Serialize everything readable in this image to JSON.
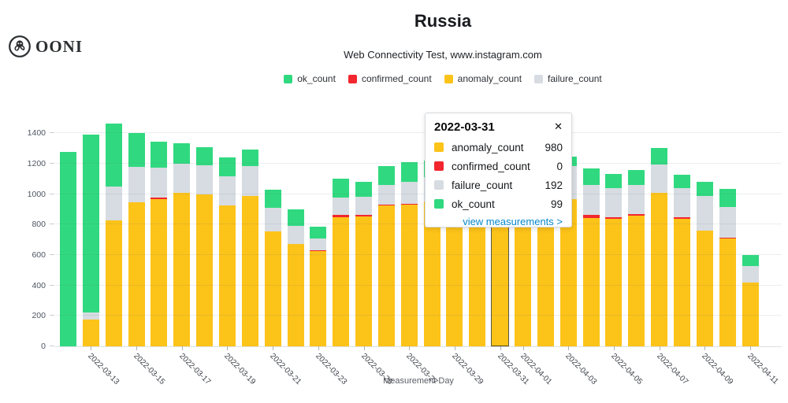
{
  "logo": {
    "text": "OONI"
  },
  "header": {
    "title": "Russia",
    "subtitle": "Web Connectivity Test, www.instagram.com"
  },
  "legend": [
    {
      "label": "ok_count",
      "color": "#30d97f"
    },
    {
      "label": "confirmed_count",
      "color": "#f2262e"
    },
    {
      "label": "anomaly_count",
      "color": "#fcc319"
    },
    {
      "label": "failure_count",
      "color": "#d7dce2"
    }
  ],
  "colors": {
    "ok": "#30d97f",
    "confirmed": "#f2262e",
    "anomaly": "#fcc319",
    "failure": "#d7dce2",
    "link_blue": "#0588cb",
    "grid": "rgba(90,104,128,0.12)"
  },
  "chart_data": {
    "type": "bar",
    "stacked": true,
    "title": "Russia",
    "xlabel": "Measurement Day",
    "ylabel": "",
    "ylim": [
      0,
      1500
    ],
    "yticks": [
      0,
      200,
      400,
      600,
      800,
      1000,
      1200,
      1400
    ],
    "grid": true,
    "legend_position": "top",
    "x": [
      "2022-03-12",
      "2022-03-13",
      "2022-03-14",
      "2022-03-15",
      "2022-03-16",
      "2022-03-17",
      "2022-03-18",
      "2022-03-19",
      "2022-03-20",
      "2022-03-21",
      "2022-03-22",
      "2022-03-23",
      "2022-03-24",
      "2022-03-25",
      "2022-03-26",
      "2022-03-27",
      "2022-03-28",
      "2022-03-29",
      "2022-03-30",
      "2022-03-31",
      "2022-04-01",
      "2022-04-02",
      "2022-04-03",
      "2022-04-04",
      "2022-04-05",
      "2022-04-06",
      "2022-04-07",
      "2022-04-08",
      "2022-04-09",
      "2022-04-10",
      "2022-04-11"
    ],
    "series": [
      {
        "name": "anomaly_count",
        "color": "#fcc319",
        "values": [
          0,
          175,
          830,
          945,
          965,
          1010,
          1000,
          925,
          990,
          755,
          670,
          625,
          850,
          855,
          925,
          930,
          950,
          960,
          970,
          980,
          950,
          940,
          965,
          845,
          840,
          860,
          1010,
          840,
          760,
          710,
          420
        ]
      },
      {
        "name": "confirmed_count",
        "color": "#f2262e",
        "values": [
          0,
          0,
          0,
          0,
          12,
          0,
          0,
          0,
          0,
          0,
          0,
          6,
          12,
          7,
          6,
          6,
          0,
          0,
          0,
          0,
          0,
          0,
          0,
          18,
          10,
          8,
          0,
          6,
          0,
          6,
          0
        ]
      },
      {
        "name": "failure_count",
        "color": "#d7dce2",
        "values": [
          0,
          45,
          220,
          235,
          198,
          190,
          190,
          190,
          195,
          155,
          120,
          76,
          118,
          123,
          129,
          144,
          160,
          170,
          180,
          192,
          180,
          170,
          222,
          198,
          190,
          190,
          185,
          196,
          230,
          199,
          110
        ]
      },
      {
        "name": "ok_count",
        "color": "#30d97f",
        "values": [
          1280,
          1170,
          415,
          220,
          170,
          135,
          120,
          125,
          110,
          120,
          110,
          80,
          120,
          95,
          125,
          130,
          110,
          100,
          100,
          99,
          110,
          110,
          60,
          110,
          95,
          100,
          110,
          85,
          90,
          120,
          70
        ]
      }
    ],
    "xtick_labels": [
      "2022-03-13",
      "2022-03-15",
      "2022-03-17",
      "2022-03-19",
      "2022-03-21",
      "2022-03-23",
      "2022-03-25",
      "2022-03-27",
      "2022-03-29",
      "2022-03-31",
      "2022-04-01",
      "2022-04-03",
      "2022-04-05",
      "2022-04-07",
      "2022-04-09",
      "2022-04-11"
    ],
    "highlighted_x": "2022-03-31"
  },
  "tooltip": {
    "date": "2022-03-31",
    "close_label": "✕",
    "rows": [
      {
        "label": "anomaly_count",
        "value": 980,
        "color": "#fcc319"
      },
      {
        "label": "confirmed_count",
        "value": 0,
        "color": "#f2262e"
      },
      {
        "label": "failure_count",
        "value": 192,
        "color": "#d7dce2"
      },
      {
        "label": "ok_count",
        "value": 99,
        "color": "#30d97f"
      }
    ],
    "link": "view measurements >"
  }
}
